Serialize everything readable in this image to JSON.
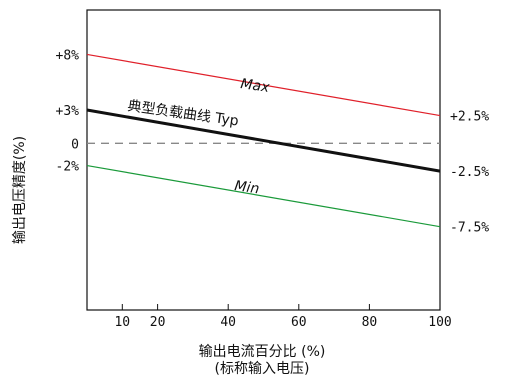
{
  "chart_data": {
    "type": "line",
    "xlabel": "输出电流百分比 (%)",
    "xlabel_sub": "(标称输入电压)",
    "ylabel": "输出电压精度(%)",
    "xlim": [
      0,
      100
    ],
    "ylim": [
      -15,
      12
    ],
    "x_ticks": [
      10,
      20,
      40,
      60,
      80,
      100
    ],
    "x_tick_labels": [
      "10",
      "20",
      "40",
      "60",
      "80",
      "100"
    ],
    "y_ticks_left": [
      {
        "value": 8,
        "label": "+8%"
      },
      {
        "value": 3,
        "label": "+3%"
      },
      {
        "value": 0,
        "label": "0"
      },
      {
        "value": -2,
        "label": "-2%"
      }
    ],
    "y_ticks_right": [
      {
        "value": 2.5,
        "label": "+2.5%"
      },
      {
        "value": -2.5,
        "label": "-2.5%"
      },
      {
        "value": -7.5,
        "label": "-7.5%"
      }
    ],
    "series": [
      {
        "name": "Max",
        "color": "#e0202a",
        "width": 1.2,
        "x": [
          0,
          100
        ],
        "y": [
          8,
          2.5
        ]
      },
      {
        "name": "典型负载曲线 Typ",
        "color": "#111111",
        "width": 3,
        "x": [
          0,
          100
        ],
        "y": [
          3,
          -2.5
        ]
      },
      {
        "name": "Min",
        "color": "#1a9a3a",
        "width": 1.2,
        "x": [
          0,
          100
        ],
        "y": [
          -2,
          -7.5
        ]
      }
    ],
    "zero_line": {
      "value": 0,
      "style": "dashed",
      "color": "#888888"
    },
    "grid": false,
    "legend": "none"
  }
}
